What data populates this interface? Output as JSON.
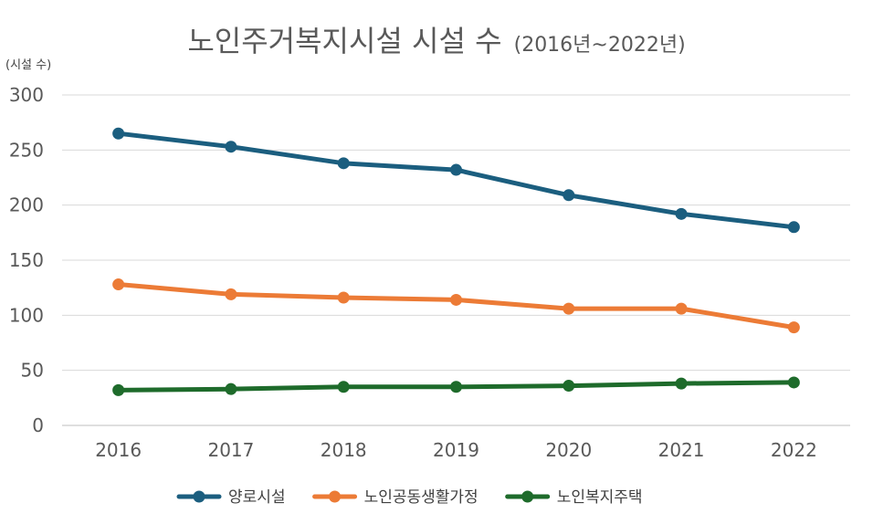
{
  "chart_data": {
    "type": "line",
    "title": "노인주거복지시설 시설 수",
    "subtitle": "(2016년~2022년)",
    "ylabel": "(시설 수)",
    "xlabel": "",
    "categories": [
      "2016",
      "2017",
      "2018",
      "2019",
      "2020",
      "2021",
      "2022"
    ],
    "ylim": [
      0,
      300
    ],
    "yticks": [
      0,
      50,
      100,
      150,
      200,
      250,
      300
    ],
    "grid": true,
    "legend_position": "bottom",
    "series": [
      {
        "name": "양로시설",
        "color": "#1b5e7f",
        "values": [
          265,
          253,
          238,
          232,
          209,
          192,
          180
        ]
      },
      {
        "name": "노인공동생활가정",
        "color": "#ec7b36",
        "values": [
          128,
          119,
          116,
          114,
          106,
          106,
          89
        ]
      },
      {
        "name": "노인복지주택",
        "color": "#1e6b2b",
        "values": [
          32,
          33,
          35,
          35,
          36,
          38,
          39
        ]
      }
    ]
  }
}
